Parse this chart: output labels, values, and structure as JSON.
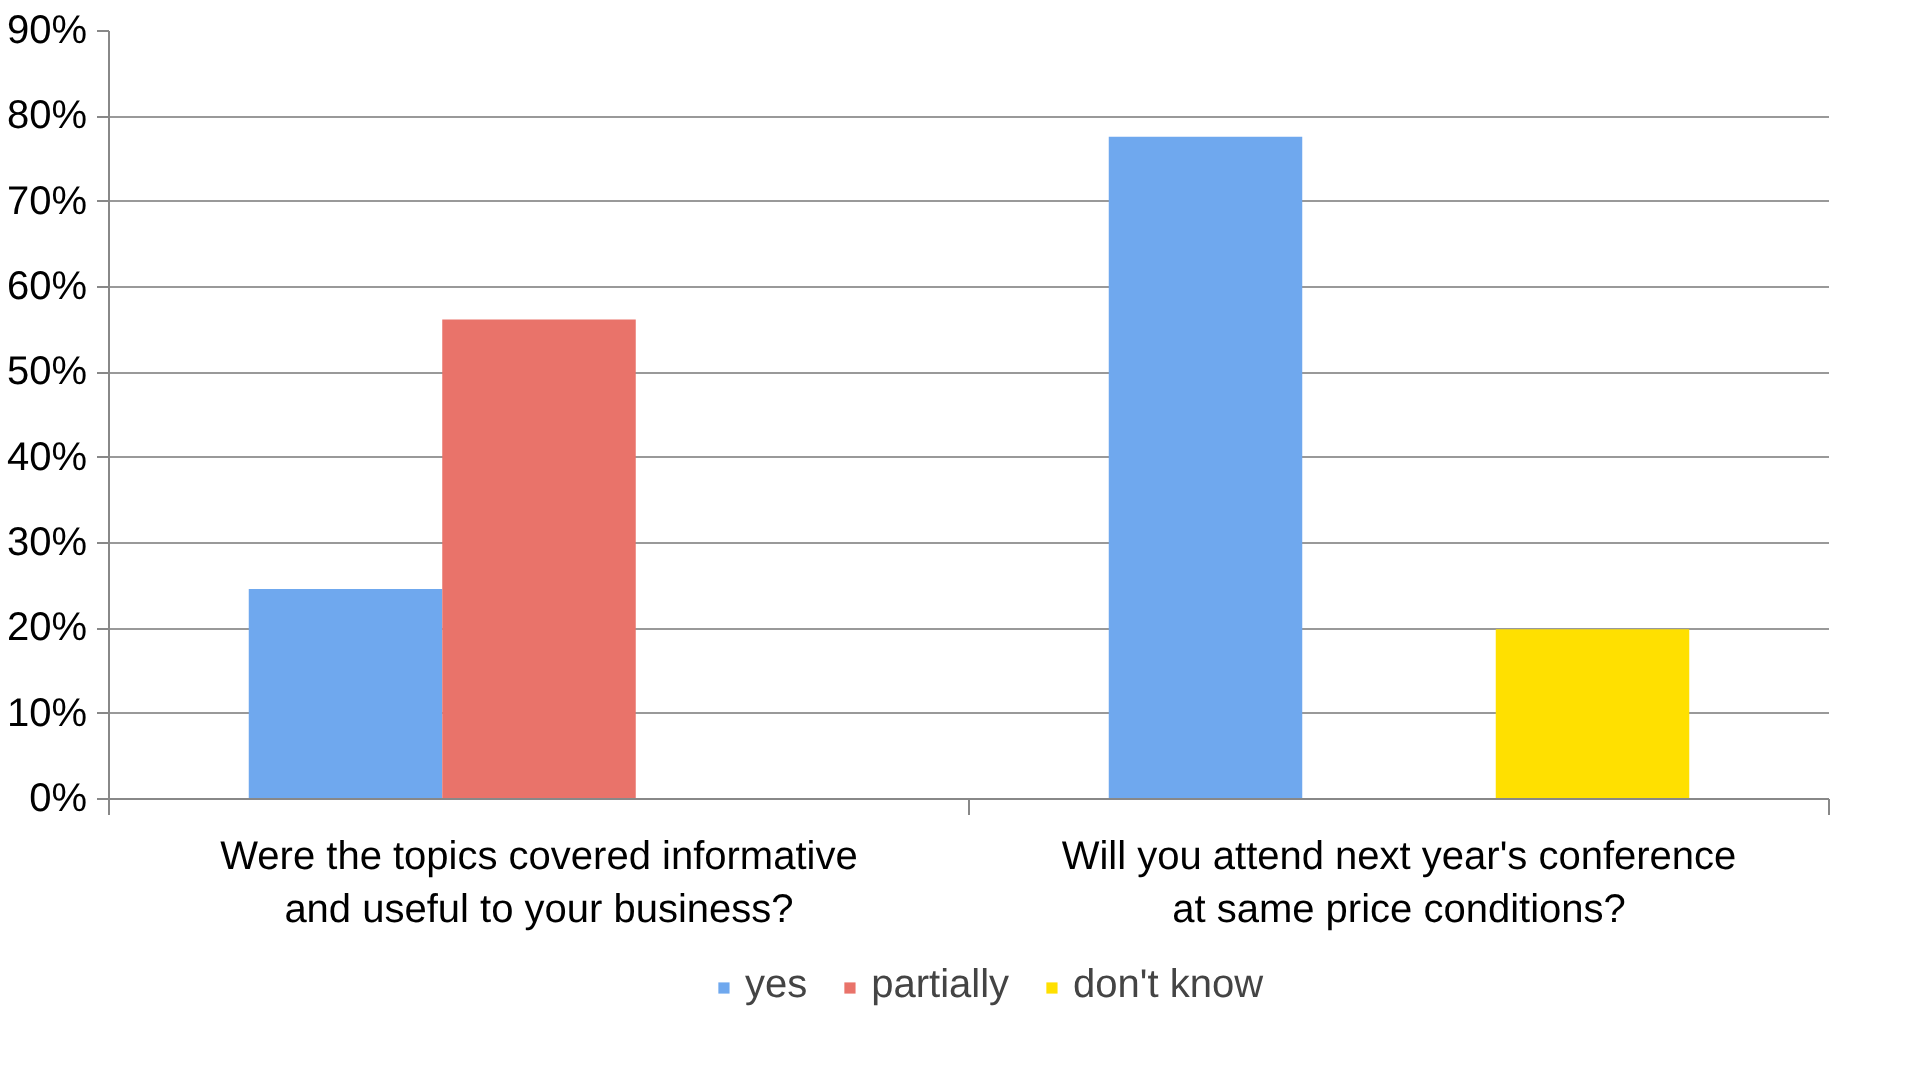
{
  "chart_data": {
    "type": "bar",
    "categories": [
      "Were the topics covered informative and useful to your business?",
      "Will you attend next year's conference at same price conditions?"
    ],
    "series": [
      {
        "name": "yes",
        "color": "#6fa8ee",
        "values": [
          24.6,
          77.6
        ]
      },
      {
        "name": "partially",
        "color": "#e9736a",
        "values": [
          56.2,
          null
        ]
      },
      {
        "name": "don't know",
        "color": "#ffe000",
        "values": [
          null,
          19.9
        ]
      }
    ],
    "ylim": [
      0,
      90
    ],
    "yticks": [
      {
        "value": 0,
        "label": "0%"
      },
      {
        "value": 10,
        "label": "10%"
      },
      {
        "value": 20,
        "label": "20%"
      },
      {
        "value": 30,
        "label": "30%"
      },
      {
        "value": 40,
        "label": "40%"
      },
      {
        "value": 50,
        "label": "50%"
      },
      {
        "value": 60,
        "label": "60%"
      },
      {
        "value": 70,
        "label": "70%"
      },
      {
        "value": 80,
        "label": "80%"
      },
      {
        "value": 90,
        "label": "90%"
      }
    ],
    "grid": "y",
    "legend": "bottom"
  }
}
